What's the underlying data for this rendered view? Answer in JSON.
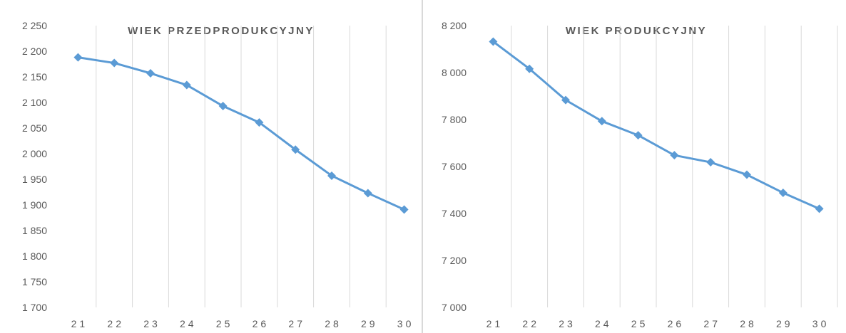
{
  "chart_data": [
    {
      "type": "line",
      "title": "WIEK PRZEDPRODUKCYJNY",
      "xlabel": "",
      "ylabel": "",
      "categories": [
        "21",
        "22",
        "23",
        "24",
        "25",
        "26",
        "27",
        "28",
        "29",
        "30"
      ],
      "series": [
        {
          "values": [
            2188,
            2177,
            2157,
            2134,
            2093,
            2061,
            2008,
            1957,
            1923,
            1891
          ]
        }
      ],
      "ylim": [
        1700,
        2250
      ],
      "yticks": [
        1700,
        1750,
        1800,
        1850,
        1900,
        1950,
        2000,
        2050,
        2100,
        2150,
        2200,
        2250
      ],
      "ytick_labels": [
        "1 700",
        "1 750",
        "1 800",
        "1 850",
        "1 900",
        "1 950",
        "2 000",
        "2 050",
        "2 100",
        "2 150",
        "2 200",
        "2 250"
      ],
      "grid": "vertical",
      "legend": "none",
      "line_color": "#5b9bd5"
    },
    {
      "type": "line",
      "title": "WIEK PRODUKCYJNY",
      "xlabel": "",
      "ylabel": "",
      "categories": [
        "21",
        "22",
        "23",
        "24",
        "25",
        "26",
        "27",
        "28",
        "29",
        "30"
      ],
      "series": [
        {
          "values": [
            8132,
            8016,
            7883,
            7793,
            7733,
            7648,
            7618,
            7565,
            7488,
            7420
          ]
        }
      ],
      "ylim": [
        7000,
        8200
      ],
      "yticks": [
        7000,
        7200,
        7400,
        7600,
        7800,
        8000,
        8200
      ],
      "ytick_labels": [
        "7 000",
        "7 200",
        "7 400",
        "7 600",
        "7 800",
        "8 000",
        "8 200"
      ],
      "grid": "vertical",
      "legend": "none",
      "line_color": "#5b9bd5"
    }
  ]
}
